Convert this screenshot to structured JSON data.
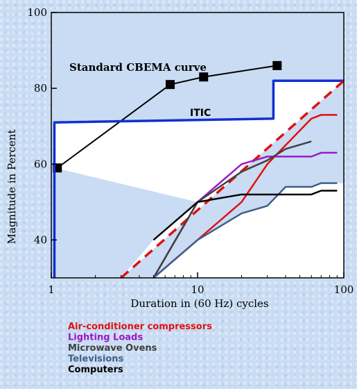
{
  "chart_data": {
    "type": "line",
    "xlabel": "Duration in (60 Hz) cycles",
    "ylabel": "Magnitude in Percent",
    "xscale": "log",
    "xlim": [
      1,
      100
    ],
    "ylim": [
      30,
      100
    ],
    "x_ticks": [
      1,
      10,
      100
    ],
    "x_tick_labels": [
      "1",
      "10",
      "100"
    ],
    "y_ticks": [
      40,
      60,
      80,
      100
    ],
    "y_tick_labels": [
      "40",
      "60",
      "80",
      "100"
    ],
    "grid": false,
    "legend_placement": "below-left",
    "annotations": [
      {
        "id": "cbema",
        "text": "Standard CBEMA curve"
      },
      {
        "id": "itic",
        "text": "ITIC"
      }
    ],
    "series": [
      {
        "name": "Standard CBEMA curve",
        "color": "#000000",
        "style": "solid-markers",
        "points": [
          [
            1.1,
            59
          ],
          [
            6.5,
            81
          ],
          [
            11,
            83
          ],
          [
            35,
            86
          ]
        ]
      },
      {
        "name": "ITIC",
        "color": "#1030d0",
        "style": "step",
        "points": [
          [
            1.05,
            30
          ],
          [
            1.05,
            71
          ],
          [
            33,
            72
          ],
          [
            33,
            82
          ],
          [
            100,
            82
          ]
        ]
      },
      {
        "name": "",
        "color": "#e01010",
        "style": "dashed",
        "points": [
          [
            3,
            30
          ],
          [
            100,
            82
          ]
        ]
      },
      {
        "name": "Air-conditioner compressors",
        "color": "#e01010",
        "style": "solid",
        "points": [
          [
            5,
            30
          ],
          [
            10,
            40
          ],
          [
            20,
            50
          ],
          [
            30,
            60
          ],
          [
            40,
            65
          ],
          [
            60,
            72
          ],
          [
            70,
            73
          ],
          [
            90,
            73
          ]
        ]
      },
      {
        "name": "Lighting Loads",
        "color": "#9a18c8",
        "style": "solid",
        "points": [
          [
            5,
            30
          ],
          [
            10,
            50
          ],
          [
            20,
            60
          ],
          [
            30,
            62
          ],
          [
            60,
            62
          ],
          [
            70,
            63
          ],
          [
            90,
            63
          ]
        ]
      },
      {
        "name": "Microwave Ovens",
        "color": "#404040",
        "style": "solid",
        "points": [
          [
            5,
            30
          ],
          [
            10,
            50
          ],
          [
            20,
            58
          ],
          [
            30,
            61
          ],
          [
            40,
            64
          ],
          [
            60,
            66
          ]
        ]
      },
      {
        "name": "Televisions",
        "color": "#3f5f86",
        "style": "solid",
        "points": [
          [
            5,
            30
          ],
          [
            10,
            40
          ],
          [
            20,
            47
          ],
          [
            30,
            49
          ],
          [
            40,
            54
          ],
          [
            60,
            54
          ],
          [
            70,
            55
          ],
          [
            90,
            55
          ]
        ]
      },
      {
        "name": "Computers",
        "color": "#000000",
        "style": "solid",
        "points": [
          [
            5,
            40
          ],
          [
            10,
            50
          ],
          [
            20,
            52
          ],
          [
            60,
            52
          ],
          [
            70,
            53
          ],
          [
            90,
            53
          ]
        ]
      }
    ]
  },
  "legend": [
    {
      "label": "Air-conditioner compressors",
      "color": "#e01010"
    },
    {
      "label": "Lighting Loads",
      "color": "#9a18c8"
    },
    {
      "label": "Microwave Ovens",
      "color": "#404040"
    },
    {
      "label": "Televisions",
      "color": "#3f5f86"
    },
    {
      "label": "Computers",
      "color": "#000000"
    }
  ]
}
